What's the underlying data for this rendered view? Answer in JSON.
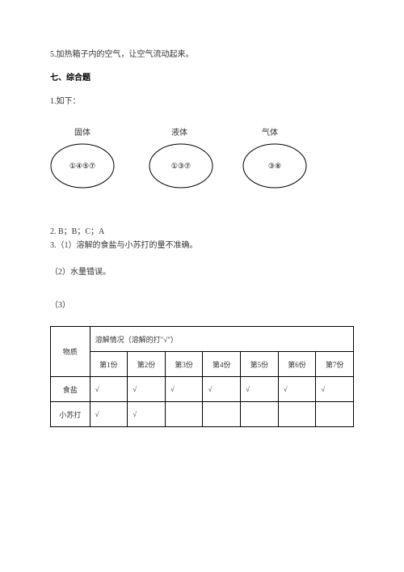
{
  "lines": {
    "q5": "5.加热箱子内的空气，让空气流动起来。",
    "sectionTitle": "七、综合题",
    "q1": "1.如下：",
    "q2": "2. B；B；C；A",
    "q3_1": "3.（1）溶解的食盐与小苏打的量不准确。",
    "q3_2": "（2）水量错误。",
    "q3_3": "（3）"
  },
  "diagram": {
    "labels": [
      "固体",
      "液体",
      "气体"
    ],
    "contents": [
      "①④⑤⑦",
      "①③⑦",
      "③⑧"
    ],
    "labelY": 0,
    "ellipseY": 22,
    "positions": [
      {
        "labelX": 30,
        "ellipseX": 0
      },
      {
        "labelX": 150,
        "ellipseX": 122
      },
      {
        "labelX": 262,
        "ellipseX": 238
      }
    ],
    "ellipseW": 80,
    "ellipseH": 56,
    "stroke": "#000000",
    "fill": "none"
  },
  "table": {
    "substanceHeader": "物质",
    "dissolveHeader": "溶解情况（溶解的打\"√\"）",
    "portions": [
      "第1份",
      "第2份",
      "第3份",
      "第4份",
      "第5份",
      "第6份",
      "第7份"
    ],
    "rows": [
      {
        "name": "食盐",
        "marks": [
          "√",
          "√",
          "√",
          "√",
          "√",
          "√",
          "√"
        ]
      },
      {
        "name": "小苏打",
        "marks": [
          "√",
          "√",
          "",
          "",
          "",
          "",
          ""
        ]
      }
    ],
    "checkmark": "√"
  }
}
